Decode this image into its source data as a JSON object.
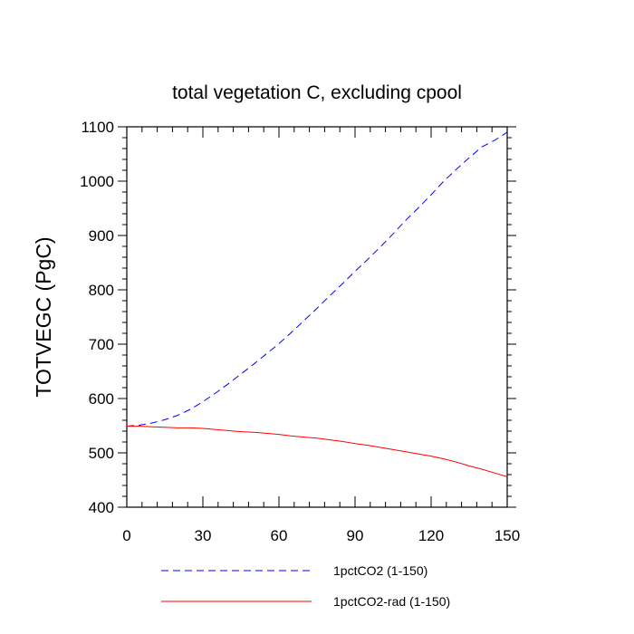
{
  "chart_data": {
    "type": "line",
    "title": "total vegetation C, excluding cpool",
    "xlabel": "",
    "ylabel": "TOTVEGC  (PgC)",
    "xlim": [
      0,
      150
    ],
    "ylim": [
      400,
      1100
    ],
    "x_ticks": [
      0,
      30,
      60,
      90,
      120,
      150
    ],
    "y_ticks": [
      400,
      500,
      600,
      700,
      800,
      900,
      1000,
      1100
    ],
    "grid": false,
    "legend_position": "bottom",
    "series": [
      {
        "name": "1pctCO2 (1-150)",
        "color": "#0000ff",
        "style": "dashed",
        "x": [
          0,
          5,
          10,
          15,
          20,
          25,
          30,
          35,
          40,
          45,
          50,
          55,
          60,
          65,
          70,
          75,
          80,
          85,
          90,
          95,
          100,
          105,
          110,
          115,
          120,
          125,
          130,
          135,
          140,
          145,
          150
        ],
        "y": [
          549,
          551,
          555,
          561,
          569,
          580,
          594,
          610,
          627,
          645,
          663,
          682,
          701,
          722,
          744,
          766,
          789,
          811,
          834,
          856,
          879,
          903,
          928,
          951,
          975,
          1000,
          1022,
          1043,
          1063,
          1075,
          1090
        ]
      },
      {
        "name": "1pctCO2-rad (1-150)",
        "color": "#ff0000",
        "style": "solid",
        "x": [
          0,
          5,
          10,
          15,
          20,
          25,
          30,
          35,
          40,
          45,
          50,
          55,
          60,
          65,
          70,
          75,
          80,
          85,
          90,
          95,
          100,
          105,
          110,
          115,
          120,
          125,
          130,
          135,
          140,
          145,
          150
        ],
        "y": [
          549,
          549,
          548,
          547,
          546,
          546,
          545,
          543,
          541,
          539,
          538,
          536,
          534,
          531,
          529,
          527,
          524,
          521,
          517,
          514,
          510,
          506,
          502,
          498,
          494,
          489,
          483,
          476,
          470,
          463,
          456
        ]
      }
    ]
  }
}
